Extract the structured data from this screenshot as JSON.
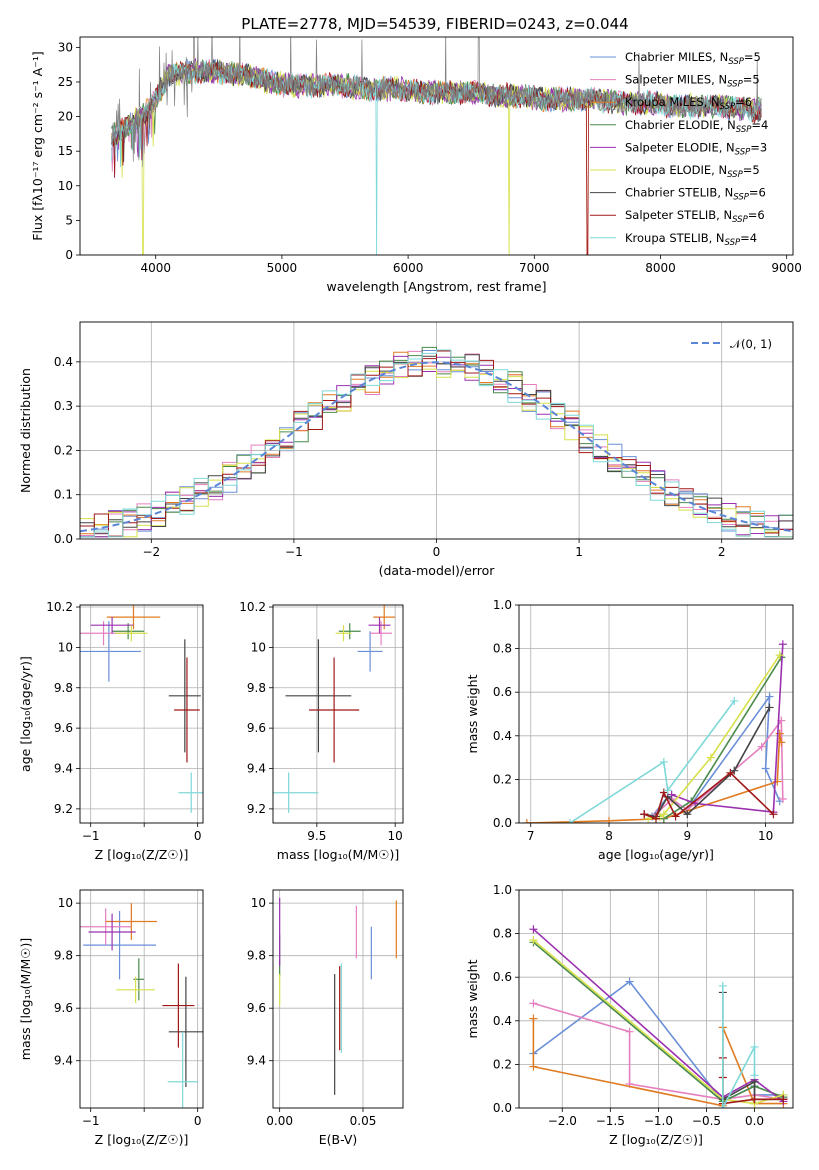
{
  "title": "PLATE=2778, MJD=54539, FIBERID=0243, z=0.044",
  "colors": {
    "Chabrier MILES": "#6a8fd8",
    "Salpeter MILES": "#e57fbf",
    "Kroupa MILES": "#e07b22",
    "Chabrier ELODIE": "#4a8a4a",
    "Salpeter ELODIE": "#9b30b0",
    "Kroupa ELODIE": "#d6e04a",
    "Chabrier STELIB": "#444444",
    "Salpeter STELIB": "#a01818",
    "Kroupa STELIB": "#7fd8d8"
  },
  "chart_data": [
    {
      "id": "spectrum",
      "type": "line",
      "xlabel": "wavelength [Angstrom, rest frame]",
      "ylabel": "Flux [fλ10⁻¹⁷ erg cm⁻² s⁻¹ A⁻¹]",
      "xlim": [
        3400,
        9050
      ],
      "ylim": [
        0,
        31.5
      ],
      "xticks": [
        4000,
        5000,
        6000,
        7000,
        8000,
        9000
      ],
      "yticks": [
        0,
        5,
        10,
        15,
        20,
        25,
        30
      ],
      "grid": false,
      "legend_position": "top-right",
      "legend": [
        {
          "label": "Chabrier MILES, N",
          "sub": "SSP",
          "suffix": "=5"
        },
        {
          "label": "Salpeter MILES, N",
          "sub": "SSP",
          "suffix": "=5"
        },
        {
          "label": "Kroupa MILES, N",
          "sub": "SSP",
          "suffix": "=6"
        },
        {
          "label": "Chabrier ELODIE, N",
          "sub": "SSP",
          "suffix": "=4"
        },
        {
          "label": "Salpeter ELODIE, N",
          "sub": "SSP",
          "suffix": "=3"
        },
        {
          "label": "Kroupa ELODIE, N",
          "sub": "SSP",
          "suffix": "=5"
        },
        {
          "label": "Chabrier STELIB, N",
          "sub": "SSP",
          "suffix": "=6"
        },
        {
          "label": "Salpeter STELIB, N",
          "sub": "SSP",
          "suffix": "=6"
        },
        {
          "label": "Kroupa STELIB, N",
          "sub": "SSP",
          "suffix": "=4"
        }
      ],
      "observed_envelope": {
        "x": [
          3650,
          3800,
          3950,
          4100,
          4300,
          4500,
          4700,
          4900,
          5100,
          5300,
          5500,
          5700,
          5900,
          6100,
          6300,
          6500,
          6700,
          6900,
          7100,
          7300,
          7500,
          7700,
          7900,
          8100,
          8300,
          8500,
          8700,
          8800
        ],
        "y": [
          17,
          19,
          21,
          26,
          26.5,
          26.5,
          26,
          25,
          24.5,
          24.5,
          24.5,
          24,
          24,
          23.5,
          23.5,
          23.5,
          23,
          23,
          22.5,
          22.5,
          22.5,
          22,
          22,
          21.5,
          21.5,
          21.5,
          21,
          21
        ]
      },
      "model_drops": [
        {
          "series": "Kroupa STELIB",
          "x": 5750
        },
        {
          "series": "Kroupa ELODIE",
          "x": 3900
        },
        {
          "series": "Kroupa ELODIE",
          "x": 6800
        },
        {
          "series": "Kroupa MILES",
          "x": 7420
        },
        {
          "series": "Salpeter STELIB",
          "x": 7420
        }
      ]
    },
    {
      "id": "residuals",
      "type": "line",
      "xlabel": "(data-model)/error",
      "ylabel": "Normed distribution",
      "xlim": [
        -2.5,
        2.5
      ],
      "ylim": [
        0,
        0.49
      ],
      "xticks": [
        -2,
        -1,
        0,
        1,
        2
      ],
      "yticks": [
        0.0,
        0.1,
        0.2,
        0.3,
        0.4
      ],
      "grid": true,
      "legend_position": "top-right",
      "legend": [
        {
          "label": "𝒩(0, 1)"
        }
      ],
      "bin_width": 0.1
    },
    {
      "id": "age-vs-Z",
      "type": "scatter",
      "xlabel": "Z [log₁₀(Z/Z☉)]",
      "ylabel": "age  [log₁₀(age/yr)]",
      "xlim": [
        -1.1,
        0.05
      ],
      "ylim": [
        9.13,
        10.21
      ],
      "xticks": [
        -1,
        -0.5,
        0
      ],
      "xticklabels": [
        "−1",
        "",
        "0"
      ],
      "yticks": [
        9.2,
        9.4,
        9.6,
        9.8,
        10.0,
        10.2
      ],
      "grid": true,
      "points": [
        {
          "series": "Chabrier MILES",
          "x": -0.83,
          "xerr": 0.3,
          "y": 9.98,
          "yerr": 0.15
        },
        {
          "series": "Salpeter MILES",
          "x": -0.88,
          "xerr": 0.25,
          "y": 10.07,
          "yerr": 0.06
        },
        {
          "series": "Kroupa MILES",
          "x": -0.6,
          "xerr": 0.25,
          "y": 10.15,
          "yerr": 0.06
        },
        {
          "series": "Chabrier ELODIE",
          "x": -0.65,
          "xerr": 0.15,
          "y": 10.08,
          "yerr": 0.04
        },
        {
          "series": "Salpeter ELODIE",
          "x": -0.8,
          "xerr": 0.2,
          "y": 10.11,
          "yerr": 0.04
        },
        {
          "series": "Kroupa ELODIE",
          "x": -0.62,
          "xerr": 0.15,
          "y": 10.07,
          "yerr": 0.04
        },
        {
          "series": "Chabrier STELIB",
          "x": -0.12,
          "xerr": 0.15,
          "y": 9.76,
          "yerr": 0.28
        },
        {
          "series": "Salpeter STELIB",
          "x": -0.1,
          "xerr": 0.12,
          "y": 9.69,
          "yerr": 0.26
        },
        {
          "series": "Kroupa STELIB",
          "x": -0.06,
          "xerr": 0.12,
          "y": 9.28,
          "yerr": 0.1
        }
      ]
    },
    {
      "id": "age-vs-mass",
      "type": "scatter",
      "xlabel": "mass [log₁₀(M/M☉)]",
      "ylabel": "",
      "xlim": [
        9.22,
        10.05
      ],
      "ylim": [
        9.13,
        10.21
      ],
      "xticks": [
        9.5,
        10.0
      ],
      "yticks": [
        9.2,
        9.4,
        9.6,
        9.8,
        10.0,
        10.2
      ],
      "grid": true,
      "points": [
        {
          "series": "Chabrier MILES",
          "x": 9.84,
          "xerr": 0.08,
          "y": 9.98,
          "yerr": 0.1
        },
        {
          "series": "Salpeter MILES",
          "x": 9.91,
          "xerr": 0.07,
          "y": 10.07,
          "yerr": 0.06
        },
        {
          "series": "Kroupa MILES",
          "x": 9.93,
          "xerr": 0.07,
          "y": 10.15,
          "yerr": 0.06
        },
        {
          "series": "Chabrier ELODIE",
          "x": 9.71,
          "xerr": 0.07,
          "y": 10.08,
          "yerr": 0.04
        },
        {
          "series": "Salpeter ELODIE",
          "x": 9.9,
          "xerr": 0.07,
          "y": 10.11,
          "yerr": 0.04
        },
        {
          "series": "Kroupa ELODIE",
          "x": 9.67,
          "xerr": 0.05,
          "y": 10.07,
          "yerr": 0.04
        },
        {
          "series": "Chabrier STELIB",
          "x": 9.51,
          "xerr": 0.21,
          "y": 9.76,
          "yerr": 0.28
        },
        {
          "series": "Salpeter STELIB",
          "x": 9.61,
          "xerr": 0.16,
          "y": 9.69,
          "yerr": 0.26
        },
        {
          "series": "Kroupa STELIB",
          "x": 9.32,
          "xerr": 0.19,
          "y": 9.28,
          "yerr": 0.1
        }
      ]
    },
    {
      "id": "mass-weight-vs-age",
      "type": "line",
      "xlabel": "age  [log₁₀(age/yr)]",
      "ylabel": "mass weight",
      "xlim": [
        6.85,
        10.35
      ],
      "ylim": [
        0,
        1.0
      ],
      "xticks": [
        7,
        8,
        9,
        10
      ],
      "yticks": [
        0.0,
        0.2,
        0.4,
        0.6,
        0.8,
        1.0
      ],
      "grid": true,
      "series": [
        {
          "name": "Chabrier MILES",
          "x": [
            8.55,
            8.75,
            9.0,
            10.05,
            10.0,
            10.18
          ],
          "y": [
            0.03,
            0.12,
            0.06,
            0.58,
            0.25,
            0.1
          ]
        },
        {
          "name": "Salpeter MILES",
          "x": [
            8.6,
            8.8,
            9.0,
            9.95,
            10.2,
            10.22
          ],
          "y": [
            0.04,
            0.11,
            0.06,
            0.35,
            0.47,
            0.11
          ]
        },
        {
          "name": "Kroupa MILES",
          "x": [
            6.95,
            8.0,
            8.7,
            10.15,
            10.18,
            10.2
          ],
          "y": [
            0.0,
            0.01,
            0.02,
            0.19,
            0.41,
            0.37
          ]
        },
        {
          "name": "Chabrier ELODIE",
          "x": [
            8.7,
            9.05,
            10.2,
            10.2
          ],
          "y": [
            0.02,
            0.1,
            0.76,
            0.76
          ]
        },
        {
          "name": "Salpeter ELODIE",
          "x": [
            8.8,
            9.1,
            10.1,
            10.22
          ],
          "y": [
            0.13,
            0.09,
            0.05,
            0.82
          ]
        },
        {
          "name": "Kroupa ELODIE",
          "x": [
            8.5,
            8.65,
            8.7,
            9.3,
            10.18
          ],
          "y": [
            0.02,
            0.03,
            0.04,
            0.3,
            0.77
          ]
        },
        {
          "name": "Chabrier STELIB",
          "x": [
            8.45,
            8.6,
            8.75,
            9.0,
            9.6,
            10.05
          ],
          "y": [
            0.04,
            0.03,
            0.12,
            0.04,
            0.24,
            0.53
          ]
        },
        {
          "name": "Salpeter STELIB",
          "x": [
            8.45,
            8.6,
            8.7,
            8.85,
            9.55,
            10.1
          ],
          "y": [
            0.04,
            0.02,
            0.14,
            0.03,
            0.23,
            0.04
          ]
        },
        {
          "name": "Kroupa STELIB",
          "x": [
            7.5,
            8.7,
            8.75,
            9.6
          ],
          "y": [
            0.0,
            0.28,
            0.15,
            0.56
          ]
        }
      ]
    },
    {
      "id": "mass-vs-Z",
      "type": "scatter",
      "xlabel": "Z [log₁₀(Z/Z☉)]",
      "ylabel": "mass [log₁₀(M/M☉)]",
      "xlim": [
        -1.1,
        0.05
      ],
      "ylim": [
        9.22,
        10.05
      ],
      "xticks": [
        -1,
        -0.5,
        0
      ],
      "xticklabels": [
        "−1",
        "",
        "0"
      ],
      "yticks": [
        9.4,
        9.6,
        9.8,
        10.0
      ],
      "grid": true,
      "points": [
        {
          "series": "Chabrier MILES",
          "x": -0.73,
          "xerr": 0.34,
          "y": 9.84,
          "yerr": 0.13
        },
        {
          "series": "Salpeter MILES",
          "x": -0.86,
          "xerr": 0.24,
          "y": 9.91,
          "yerr": 0.07
        },
        {
          "series": "Kroupa MILES",
          "x": -0.62,
          "xerr": 0.24,
          "y": 9.93,
          "yerr": 0.07
        },
        {
          "series": "Chabrier ELODIE",
          "x": -0.55,
          "xerr": 0.05,
          "y": 9.71,
          "yerr": 0.08
        },
        {
          "series": "Salpeter ELODIE",
          "x": -0.8,
          "xerr": 0.22,
          "y": 9.89,
          "yerr": 0.07
        },
        {
          "series": "Kroupa ELODIE",
          "x": -0.58,
          "xerr": 0.18,
          "y": 9.67,
          "yerr": 0.05
        },
        {
          "series": "Chabrier STELIB",
          "x": -0.11,
          "xerr": 0.16,
          "y": 9.51,
          "yerr": 0.21
        },
        {
          "series": "Salpeter STELIB",
          "x": -0.18,
          "xerr": 0.15,
          "y": 9.61,
          "yerr": 0.16
        },
        {
          "series": "Kroupa STELIB",
          "x": -0.14,
          "xerr": 0.14,
          "y": 9.32,
          "yerr": 0.19
        }
      ]
    },
    {
      "id": "mass-vs-ebv",
      "type": "scatter",
      "xlabel": "E(B-V)",
      "ylabel": "",
      "xlim": [
        -0.004,
        0.074
      ],
      "ylim": [
        9.22,
        10.05
      ],
      "xticks": [
        0.0,
        0.05
      ],
      "xticklabels": [
        "0.00",
        "0.05"
      ],
      "yticks": [
        9.4,
        9.6,
        9.8,
        10.0
      ],
      "grid": true,
      "points": [
        {
          "series": "Chabrier MILES",
          "x": 0.055,
          "xerr": 0,
          "y": 9.81,
          "yerr": 0.1
        },
        {
          "series": "Salpeter MILES",
          "x": 0.046,
          "xerr": 0,
          "y": 9.89,
          "yerr": 0.1
        },
        {
          "series": "Kroupa MILES",
          "x": 0.07,
          "xerr": 0,
          "y": 9.9,
          "yerr": 0.11
        },
        {
          "series": "Chabrier ELODIE",
          "x": 0.0,
          "xerr": 0,
          "y": 9.8,
          "yerr": 0.08
        },
        {
          "series": "Salpeter ELODIE",
          "x": 0.0,
          "xerr": 0,
          "y": 9.89,
          "yerr": 0.13
        },
        {
          "series": "Kroupa ELODIE",
          "x": 0.0,
          "xerr": 0,
          "y": 9.67,
          "yerr": 0.06
        },
        {
          "series": "Chabrier STELIB",
          "x": 0.033,
          "xerr": 0,
          "y": 9.5,
          "yerr": 0.23
        },
        {
          "series": "Salpeter STELIB",
          "x": 0.036,
          "xerr": 0,
          "y": 9.6,
          "yerr": 0.16
        },
        {
          "series": "Kroupa STELIB",
          "x": 0.037,
          "xerr": 0,
          "y": 9.6,
          "yerr": 0.17
        }
      ]
    },
    {
      "id": "mass-weight-vs-Z",
      "type": "line",
      "xlabel": "Z [log₁₀(Z/Z☉)]",
      "ylabel": "mass weight",
      "xlim": [
        -2.45,
        0.4
      ],
      "ylim": [
        0,
        1.0
      ],
      "xticks": [
        -2.0,
        -1.5,
        -1.0,
        -0.5,
        0.0
      ],
      "xticklabels": [
        "−2.0",
        "−1.5",
        "−1.0",
        "−0.5",
        "0.0"
      ],
      "yticks": [
        0.0,
        0.2,
        0.4,
        0.6,
        0.8,
        1.0
      ],
      "grid": true,
      "series": [
        {
          "name": "Chabrier MILES",
          "x": [
            -2.3,
            -1.3,
            -0.33,
            0.0,
            0.0,
            0.3
          ],
          "y": [
            0.25,
            0.58,
            0.03,
            0.1,
            0.06,
            0.06
          ]
        },
        {
          "name": "Salpeter MILES",
          "x": [
            -2.3,
            -1.3,
            -1.3,
            -0.33,
            0.0,
            0.3
          ],
          "y": [
            0.48,
            0.35,
            0.11,
            0.04,
            0.06,
            0.04
          ]
        },
        {
          "name": "Kroupa MILES",
          "x": [
            -2.3,
            -2.3,
            -0.33,
            -0.33,
            0.0,
            0.3
          ],
          "y": [
            0.41,
            0.19,
            0.01,
            0.37,
            0.02,
            0.02
          ]
        },
        {
          "name": "Chabrier ELODIE",
          "x": [
            -2.3,
            -0.33,
            0.0,
            0.3
          ],
          "y": [
            0.76,
            0.03,
            0.1,
            0.05
          ]
        },
        {
          "name": "Salpeter ELODIE",
          "x": [
            -2.3,
            -0.33,
            0.0,
            0.3
          ],
          "y": [
            0.82,
            0.05,
            0.13,
            0.03
          ]
        },
        {
          "name": "Kroupa ELODIE",
          "x": [
            -2.3,
            -0.33,
            0.0,
            0.3
          ],
          "y": [
            0.77,
            0.04,
            0.02,
            0.06
          ]
        },
        {
          "name": "Chabrier STELIB",
          "x": [
            -0.33,
            -0.33,
            0.0,
            0.0,
            0.3
          ],
          "y": [
            0.53,
            0.04,
            0.12,
            0.04,
            0.04
          ]
        },
        {
          "name": "Salpeter STELIB",
          "x": [
            -0.33,
            -0.33,
            -0.33,
            0.0,
            0.3
          ],
          "y": [
            0.23,
            0.14,
            0.02,
            0.04,
            0.04
          ]
        },
        {
          "name": "Kroupa STELIB",
          "x": [
            -0.33,
            -0.33,
            0.0,
            0.0
          ],
          "y": [
            0.56,
            0.0,
            0.28,
            0.15
          ]
        }
      ]
    }
  ]
}
